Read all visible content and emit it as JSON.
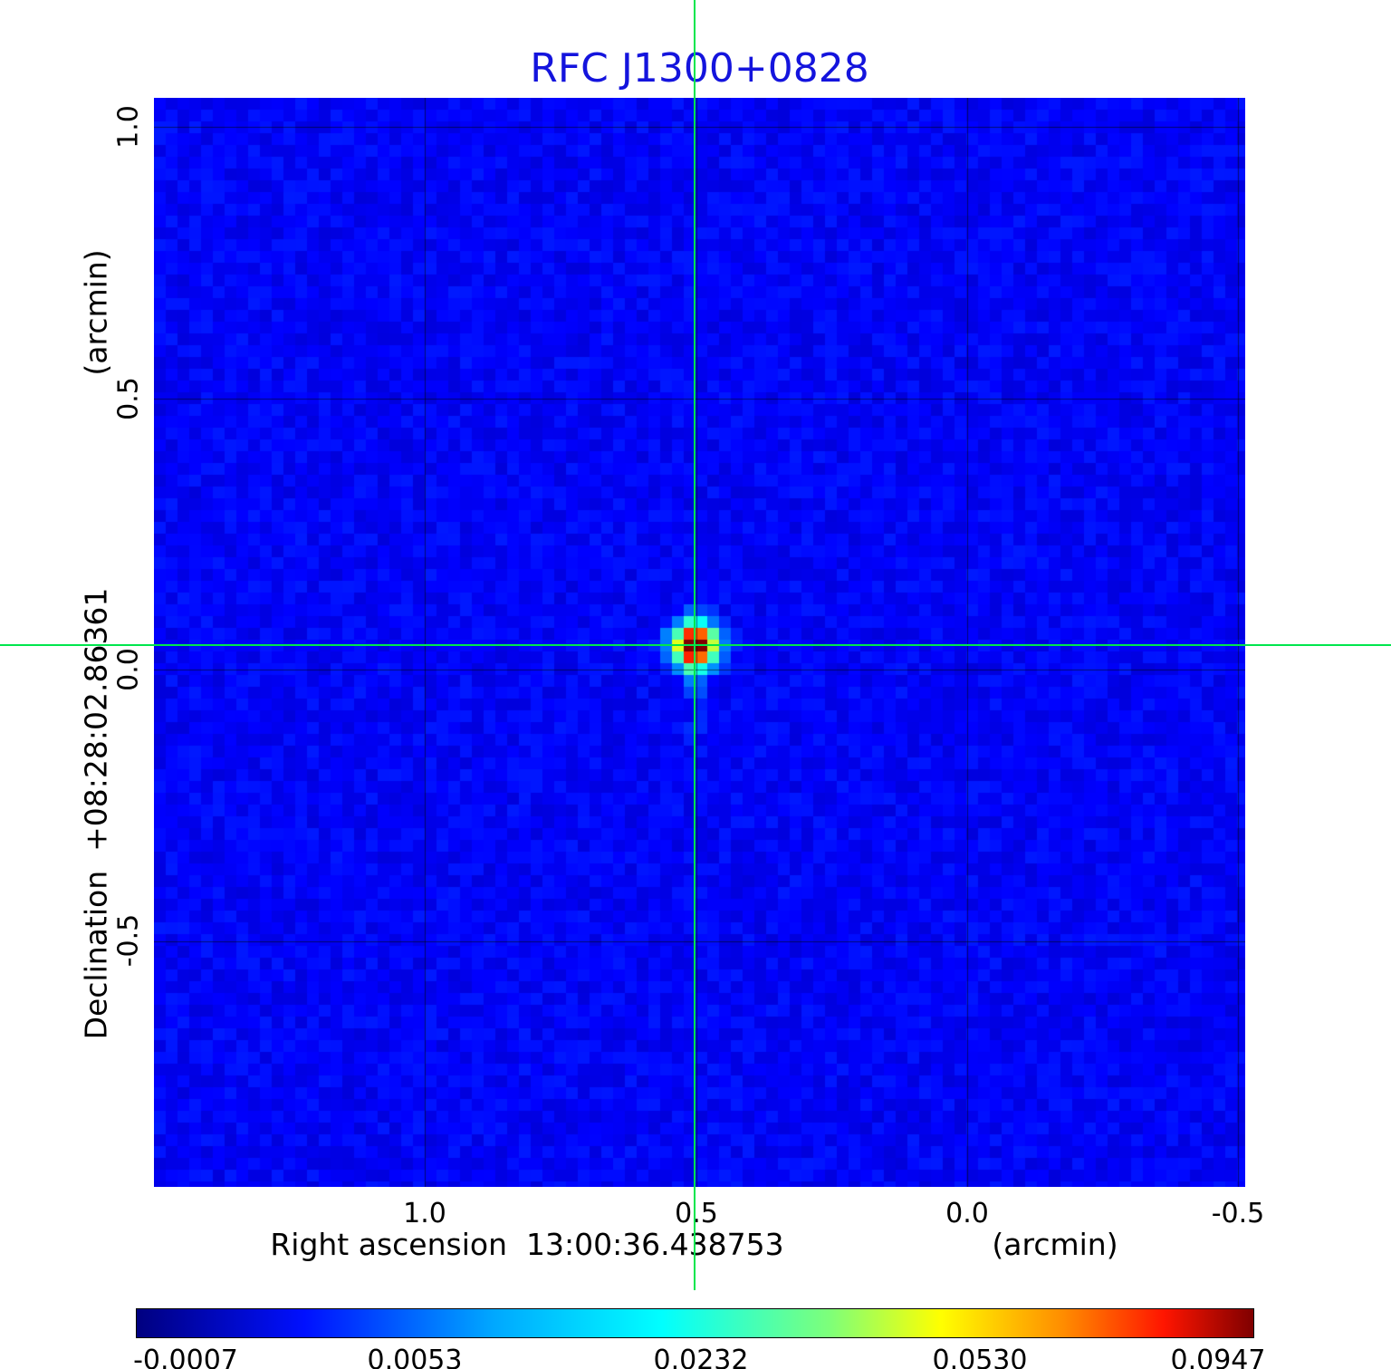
{
  "title": "RFC J1300+0828",
  "axes": {
    "x_label": "Right ascension  13:00:36.438753",
    "x_unit": "(arcmin)",
    "y_label": "Declination  +08:28:02.86361",
    "y_unit": "(arcmin)",
    "x_ticks": [
      "1.0",
      "0.5",
      "0.0",
      "-0.5"
    ],
    "y_ticks": [
      "1.0",
      "0.5",
      "0.0",
      "-0.5"
    ]
  },
  "colorbar": {
    "labels": [
      "-0.0007",
      "0.0053",
      "0.0232",
      "0.0530",
      "0.0947"
    ],
    "colormap": "jet"
  },
  "chart_data": {
    "type": "heatmap",
    "title": "RFC J1300+0828",
    "xlabel": "Right ascension 13:00:36.438753 (arcmin)",
    "ylabel": "Declination +08:28:02.86361 (arcmin)",
    "x_ticks_arcmin": [
      1.0,
      0.5,
      0.0,
      -0.5
    ],
    "y_ticks_arcmin": [
      1.0,
      0.5,
      0.0,
      -0.5
    ],
    "x_range_arcmin": [
      1.5,
      -0.513
    ],
    "y_range_arcmin": [
      1.054,
      -0.953
    ],
    "grid": true,
    "colorbar_ticks": [
      -0.0007,
      0.0053,
      0.0232,
      0.053,
      0.0947
    ],
    "colormap": "jet",
    "background_noise_typical_value": 0.003,
    "source": {
      "x_arcmin": 0.502,
      "y_arcmin": 0.045,
      "peak_value": 0.0947,
      "marker": "green-crosshair"
    },
    "crosshair_color": "#00e64d",
    "title_color": "#1414dd"
  }
}
